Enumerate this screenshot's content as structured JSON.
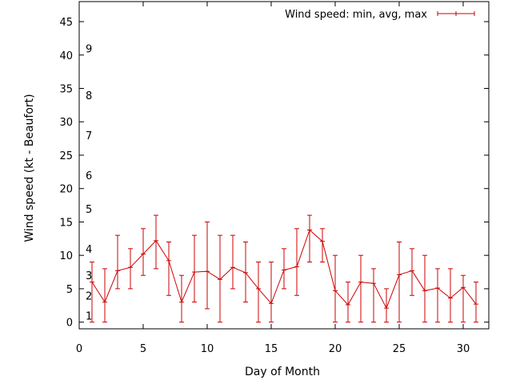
{
  "chart_data": {
    "type": "line",
    "title": "",
    "xlabel": "Day of Month",
    "ylabel": "Wind speed (kt - Beaufort)",
    "xlim": [
      0,
      32
    ],
    "ylim": [
      -1,
      48
    ],
    "xticks": [
      0,
      5,
      10,
      15,
      20,
      25,
      30
    ],
    "yticks": [
      0,
      5,
      10,
      15,
      20,
      25,
      30,
      35,
      40,
      45
    ],
    "grid": false,
    "legend_position": "top-right",
    "beaufort_labels": [
      {
        "label": "1",
        "value": 1
      },
      {
        "label": "2",
        "value": 4
      },
      {
        "label": "3",
        "value": 7
      },
      {
        "label": "4",
        "value": 11
      },
      {
        "label": "5",
        "value": 17
      },
      {
        "label": "6",
        "value": 22
      },
      {
        "label": "7",
        "value": 28
      },
      {
        "label": "8",
        "value": 34
      },
      {
        "label": "9",
        "value": 41
      }
    ],
    "series": [
      {
        "name": "Wind speed: min, avg, max",
        "color": "#cc0000",
        "x": [
          1,
          2,
          3,
          4,
          5,
          6,
          7,
          8,
          9,
          10,
          11,
          12,
          13,
          14,
          15,
          16,
          17,
          18,
          19,
          20,
          21,
          22,
          23,
          24,
          25,
          26,
          27,
          28,
          29,
          30,
          31
        ],
        "avg": [
          6,
          3,
          7.7,
          8.2,
          10.2,
          12.2,
          9.2,
          3,
          7.5,
          7.6,
          6.4,
          8.2,
          7.4,
          5,
          2.8,
          7.8,
          8.3,
          13.8,
          12.1,
          4.7,
          2.6,
          6,
          5.8,
          2.1,
          7.1,
          7.7,
          4.7,
          5.1,
          3.6,
          5.2,
          2.7
        ],
        "min": [
          0,
          0,
          5,
          5,
          7,
          8,
          4,
          0,
          3,
          2,
          0,
          5,
          3,
          0,
          0,
          5,
          4,
          9,
          9,
          0,
          0,
          0,
          0,
          0,
          0,
          4,
          0,
          0,
          0,
          0,
          0
        ],
        "max": [
          9,
          8,
          13,
          11,
          14,
          16,
          12,
          7,
          13,
          15,
          13,
          13,
          12,
          9,
          9,
          11,
          14,
          16,
          14,
          10,
          6,
          10,
          8,
          5,
          12,
          11,
          10,
          8,
          8,
          7,
          6
        ]
      }
    ]
  }
}
